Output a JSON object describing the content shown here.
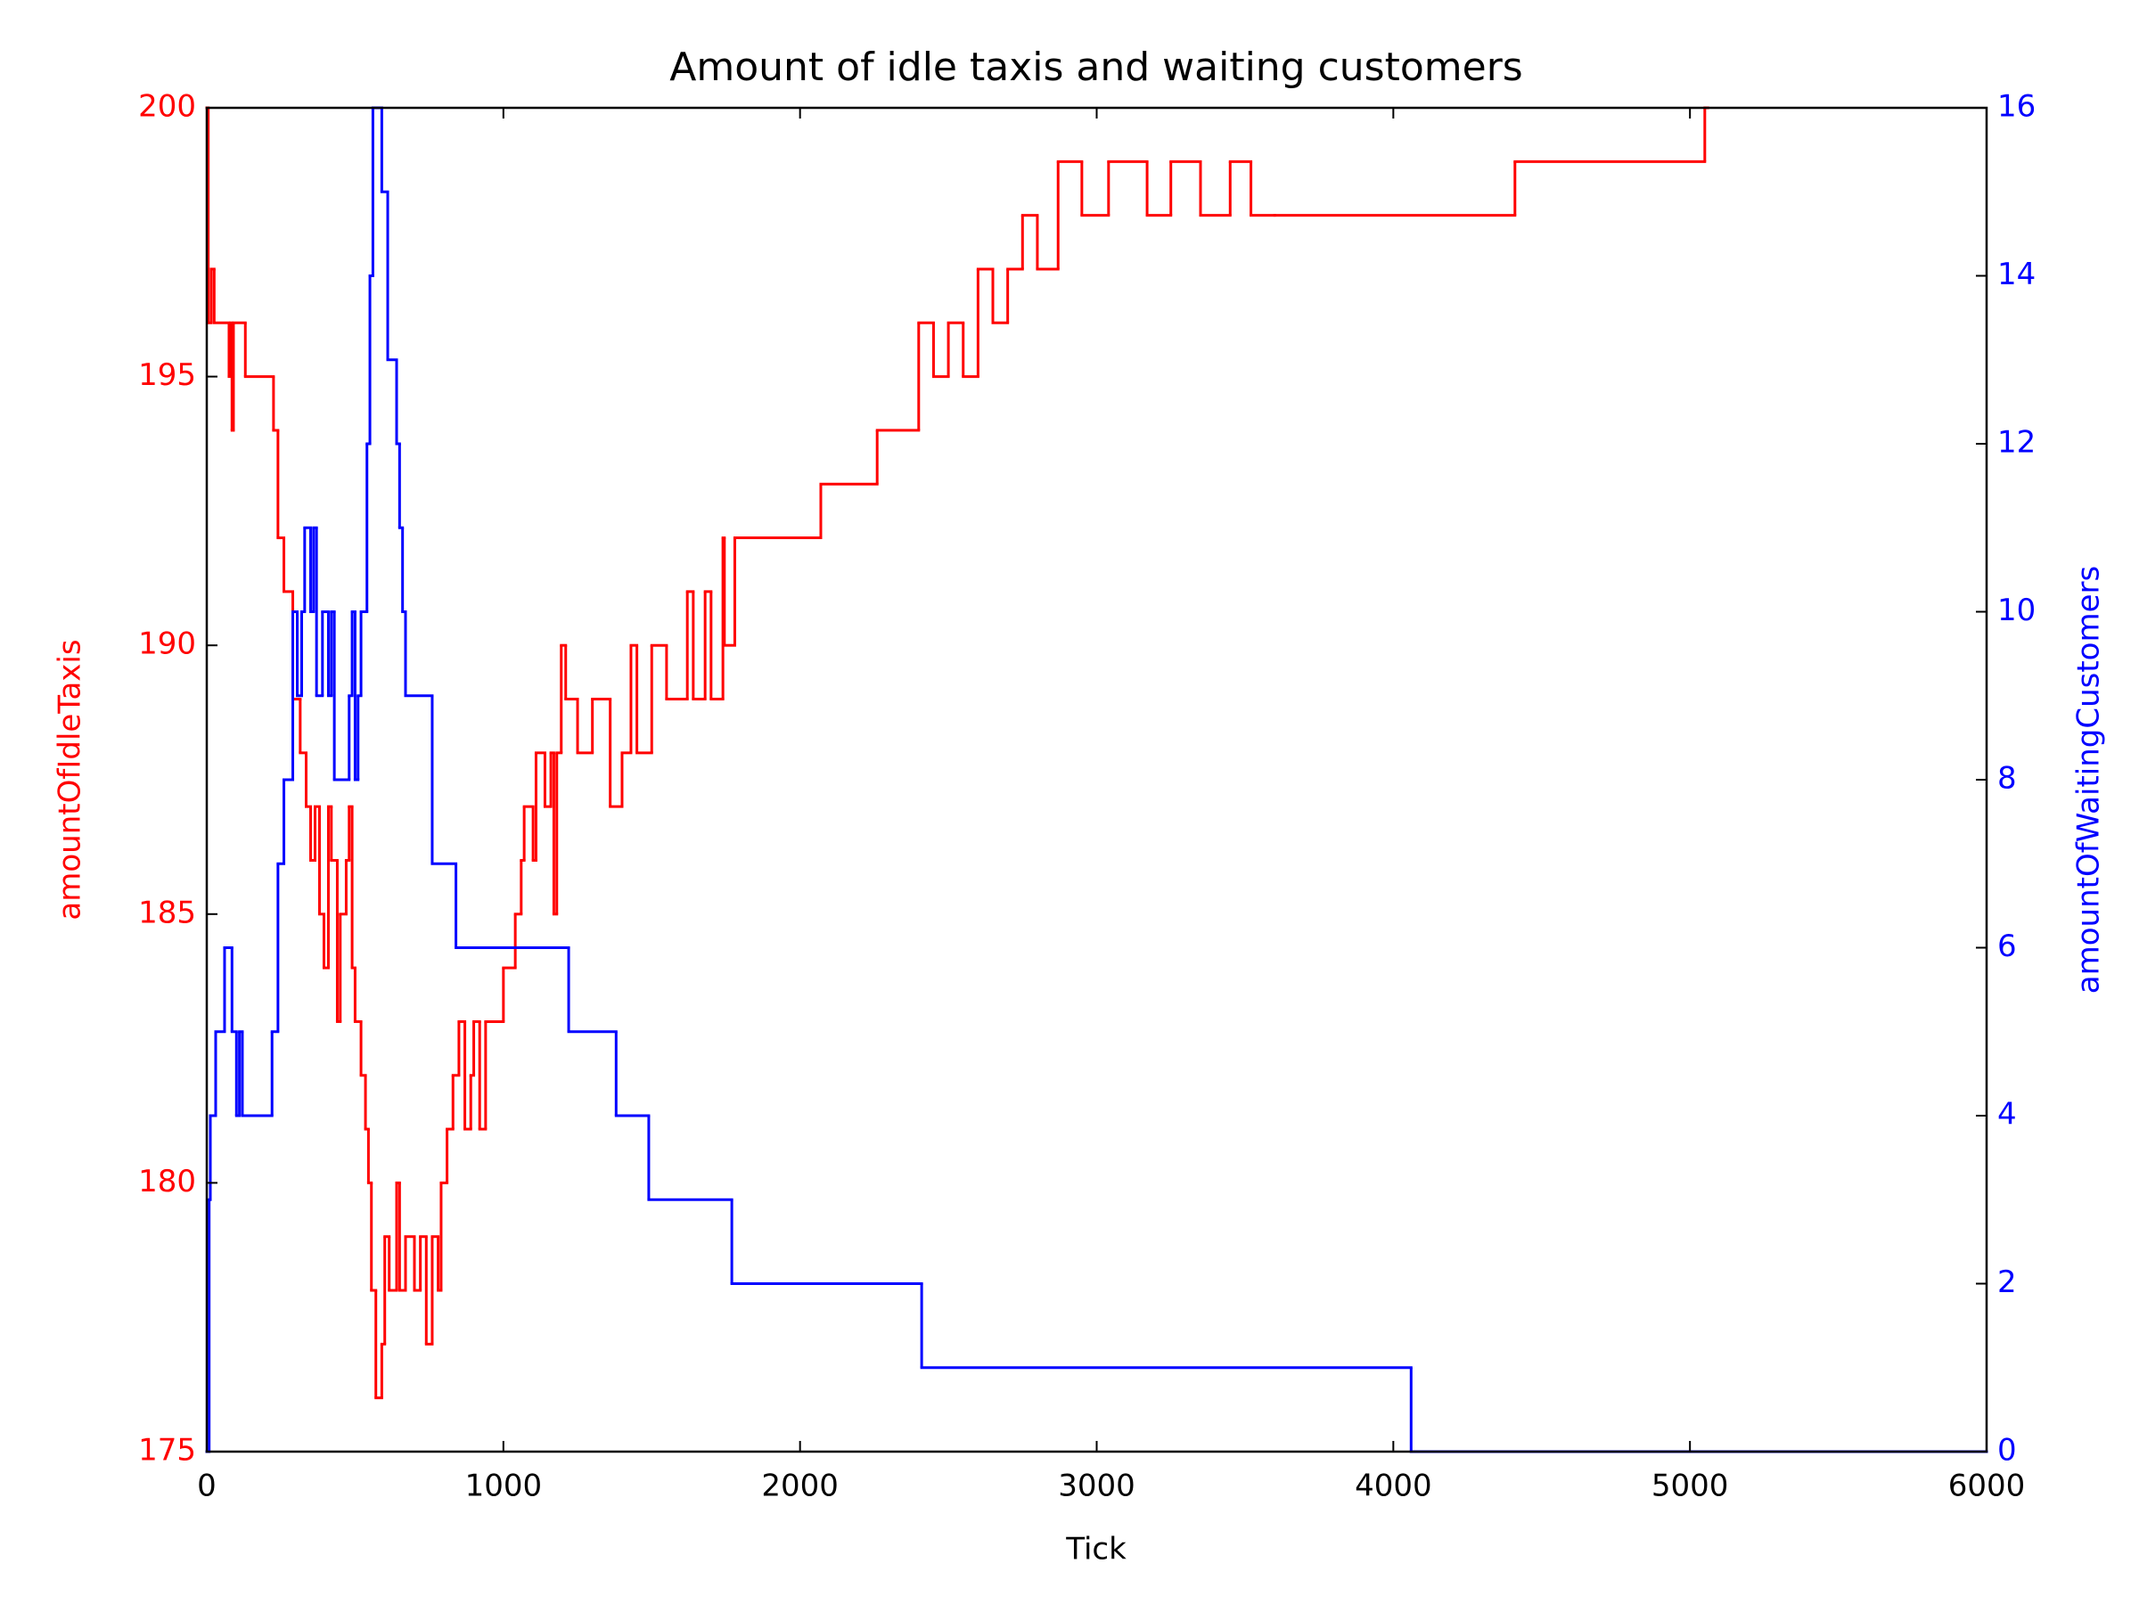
{
  "chart_data": {
    "type": "line",
    "drawstyle": "steps-post",
    "title": "Amount of idle taxis and waiting customers",
    "xlabel": "Tick",
    "ylabel": "amountOfIdleTaxis",
    "y2label": "amountOfWaitingCustomers",
    "xlim": [
      0,
      6000
    ],
    "xticks": [
      0,
      1000,
      2000,
      3000,
      4000,
      5000,
      6000
    ],
    "ylim": [
      175,
      200
    ],
    "yticks": [
      175,
      180,
      185,
      190,
      195,
      200
    ],
    "y2lim": [
      0,
      16
    ],
    "y2ticks": [
      0,
      2,
      4,
      6,
      8,
      10,
      12,
      14,
      16
    ],
    "ylabel_color": "#ff0000",
    "y2label_color": "#0000ff",
    "series": [
      {
        "color": "#ff0000",
        "axis": "y",
        "x": [
          0,
          5,
          15,
          25,
          75,
          80,
          85,
          90,
          130,
          225,
          240,
          260,
          290,
          315,
          335,
          350,
          365,
          380,
          395,
          410,
          420,
          440,
          450,
          470,
          480,
          490,
          500,
          520,
          535,
          545,
          555,
          570,
          590,
          600,
          615,
          640,
          650,
          670,
          700,
          720,
          740,
          760,
          780,
          790,
          810,
          830,
          850,
          870,
          890,
          900,
          920,
          940,
          1000,
          1040,
          1060,
          1070,
          1100,
          1110,
          1140,
          1160,
          1170,
          1180,
          1195,
          1210,
          1250,
          1300,
          1360,
          1400,
          1430,
          1450,
          1500,
          1550,
          1620,
          1640,
          1680,
          1700,
          1740,
          1745,
          1780,
          2070,
          2260,
          2400,
          2450,
          2500,
          2550,
          2600,
          2650,
          2700,
          2750,
          2800,
          2870,
          2950,
          3040,
          3170,
          3250,
          3350,
          3450,
          3520,
          3600,
          4410,
          5050,
          5060
        ],
        "values": [
          200,
          196,
          197,
          196,
          195,
          196,
          194,
          196,
          195,
          194,
          192,
          191,
          189,
          188,
          187,
          186,
          187,
          185,
          184,
          187,
          186,
          183,
          185,
          186,
          187,
          184,
          183,
          182,
          181,
          180,
          178,
          176,
          177,
          179,
          178,
          180,
          178,
          179,
          178,
          179,
          177,
          179,
          178,
          180,
          181,
          182,
          183,
          181,
          182,
          183,
          181,
          183,
          184,
          185,
          186,
          187,
          186,
          188,
          187,
          188,
          185,
          188,
          190,
          189,
          188,
          189,
          187,
          188,
          190,
          188,
          190,
          189,
          191,
          189,
          191,
          189,
          192,
          190,
          192,
          193,
          194,
          196,
          195,
          196,
          195,
          197,
          196,
          197,
          198,
          197,
          199,
          198,
          199,
          198,
          199,
          198,
          199,
          198,
          198,
          199,
          200,
          200
        ]
      },
      {
        "color": "#0000ff",
        "axis": "y2",
        "x": [
          0,
          8,
          12,
          30,
          60,
          85,
          100,
          110,
          120,
          220,
          240,
          260,
          290,
          305,
          320,
          330,
          350,
          360,
          370,
          390,
          410,
          420,
          430,
          480,
          490,
          500,
          510,
          520,
          540,
          550,
          560,
          590,
          610,
          640,
          650,
          660,
          670,
          760,
          840,
          1220,
          1380,
          1490,
          1770,
          2410,
          4060,
          6000
        ],
        "values": [
          0,
          3,
          4,
          5,
          6,
          5,
          4,
          5,
          4,
          5,
          7,
          8,
          10,
          9,
          10,
          11,
          10,
          11,
          9,
          10,
          9,
          10,
          8,
          9,
          10,
          8,
          9,
          10,
          12,
          14,
          16,
          15,
          13,
          12,
          11,
          10,
          9,
          7,
          6,
          5,
          4,
          3,
          2,
          1,
          0,
          0
        ]
      }
    ]
  }
}
